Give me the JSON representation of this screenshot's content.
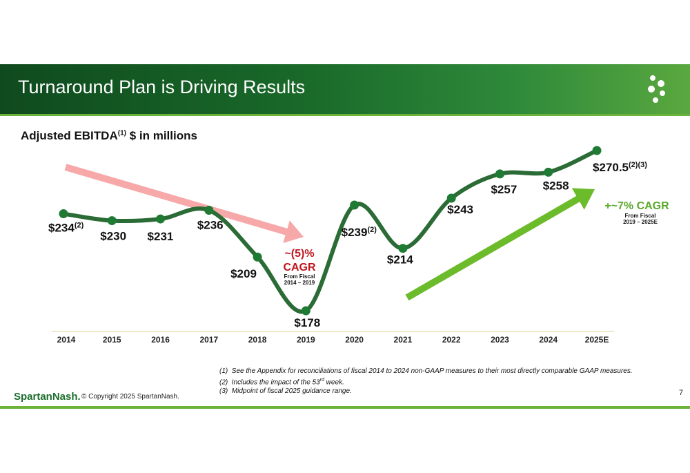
{
  "slide": {
    "title": "Turnaround Plan is Driving Results",
    "subtitle_main": "Adjusted EBITDA",
    "subtitle_sup": "(1)",
    "subtitle_rest": " $ in millions",
    "page_number": "7",
    "logo_text": "SpartanNash.",
    "copyright": "© Copyright 2025 SpartanNash.",
    "footnotes": [
      {
        "marker": "(1)",
        "text": "See the Appendix for reconciliations of fiscal 2014 to 2024 non-GAAP measures to their most directly comparable GAAP measures."
      },
      {
        "marker": "(2)",
        "text_before": "Includes the impact of the 53",
        "text_sup": "rd",
        "text_after": " week."
      },
      {
        "marker": "(3)",
        "text": "Midpoint of fiscal 2025 guidance range."
      }
    ]
  },
  "colors": {
    "line": "#2b6b35",
    "marker": "#1f7a33",
    "down_arrow": "#f7a8a8",
    "up_arrow": "#6cbb2a",
    "down_text": "#c0141c",
    "up_text": "#5aa82a"
  },
  "chart_data": {
    "type": "line",
    "categories": [
      "2014",
      "2015",
      "2016",
      "2017",
      "2018",
      "2019",
      "2020",
      "2021",
      "2022",
      "2023",
      "2024",
      "2025E"
    ],
    "values": [
      234,
      230,
      231,
      236,
      209,
      178,
      239,
      214,
      243,
      257,
      258,
      270.5
    ],
    "value_labels": [
      "$234",
      "$230",
      "$231",
      "$236",
      "$209",
      "$178",
      "$239",
      "$214",
      "$243",
      "$257",
      "$258",
      "$270.5"
    ],
    "label_superscripts": [
      "(2)",
      "",
      "",
      "",
      "",
      "",
      "(2)",
      "",
      "",
      "",
      "",
      "(2)(3)"
    ],
    "annotations": {
      "down": {
        "value": "~(5)%",
        "label": "CAGR",
        "note_line1": "From Fiscal",
        "note_line2": "2014 – 2019"
      },
      "up": {
        "value": "+~7% CAGR",
        "note_line1": "From Fiscal",
        "note_line2": "2019 – 2025E"
      }
    }
  }
}
